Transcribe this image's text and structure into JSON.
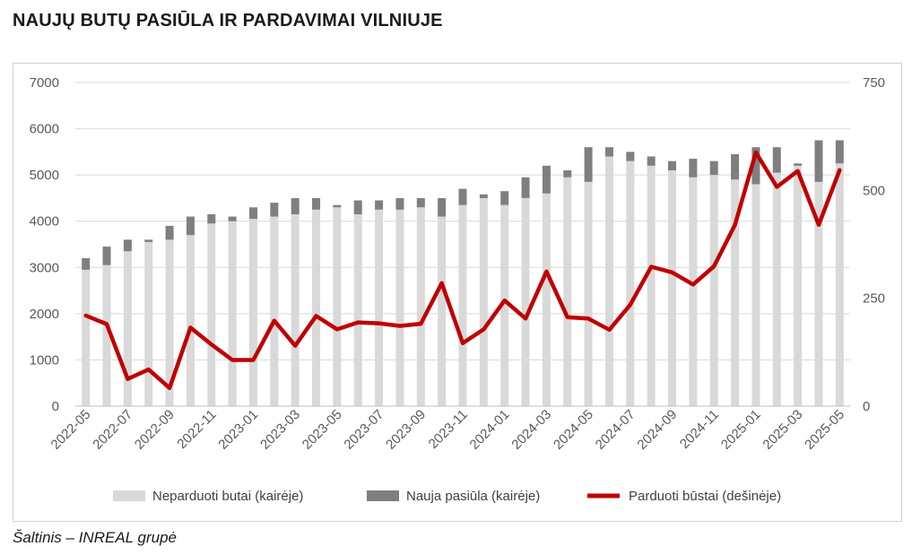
{
  "title": "NAUJŲ BUTŲ PASIŪLA IR PARDAVIMAI VILNIUJE",
  "source": "Šaltinis – INREAL grupė",
  "colors": {
    "unsold": "#d9d9d9",
    "new_supply": "#7f7f7f",
    "sold": "#c00000",
    "grid": "#d9d9d9",
    "text": "#595959"
  },
  "chart_data": {
    "type": "bar",
    "stacked": true,
    "secondary_axis": true,
    "x": [
      "2022-05",
      "2022-06",
      "2022-07",
      "2022-08",
      "2022-09",
      "2022-10",
      "2022-11",
      "2022-12",
      "2023-01",
      "2023-02",
      "2023-03",
      "2023-04",
      "2023-05",
      "2023-06",
      "2023-07",
      "2023-08",
      "2023-09",
      "2023-10",
      "2023-11",
      "2023-12",
      "2024-01",
      "2024-02",
      "2024-03",
      "2024-04",
      "2024-05",
      "2024-06",
      "2024-07",
      "2024-08",
      "2024-09",
      "2024-10",
      "2024-11",
      "2024-12",
      "2025-01",
      "2025-02",
      "2025-03",
      "2025-04",
      "2025-05"
    ],
    "x_tick_labels": [
      "2022-05",
      "2022-07",
      "2022-09",
      "2022-11",
      "2023-01",
      "2023-03",
      "2023-05",
      "2023-07",
      "2023-09",
      "2023-11",
      "2024-01",
      "2024-03",
      "2024-05",
      "2024-07",
      "2024-09",
      "2024-11",
      "2025-01",
      "2025-03",
      "2025-05"
    ],
    "series": [
      {
        "name": "Neparduoti butai (kairėje)",
        "type": "bar",
        "axis": "left",
        "values": [
          2950,
          3050,
          3350,
          3550,
          3600,
          3700,
          3950,
          4000,
          4050,
          4100,
          4150,
          4250,
          4300,
          4150,
          4250,
          4250,
          4300,
          4100,
          4350,
          4500,
          4350,
          4500,
          4600,
          4950,
          4850,
          5400,
          5300,
          5200,
          5100,
          4950,
          5000,
          4900,
          4800,
          5050,
          5200,
          4850,
          5250
        ]
      },
      {
        "name": "Nauja pasiūla (kairėje)",
        "type": "bar",
        "axis": "left",
        "values": [
          250,
          400,
          250,
          50,
          300,
          400,
          200,
          100,
          250,
          300,
          350,
          250,
          50,
          300,
          200,
          250,
          200,
          400,
          350,
          80,
          300,
          450,
          600,
          150,
          750,
          200,
          200,
          200,
          200,
          400,
          300,
          550,
          800,
          550,
          50,
          900,
          500
        ]
      },
      {
        "name": "Parduoti būstai (dešinėje)",
        "type": "line",
        "axis": "right",
        "values": [
          210,
          190,
          63,
          85,
          42,
          182,
          143,
          107,
          107,
          198,
          140,
          209,
          178,
          194,
          192,
          186,
          191,
          285,
          146,
          178,
          245,
          203,
          312,
          206,
          203,
          177,
          235,
          323,
          310,
          282,
          324,
          420,
          588,
          508,
          545,
          420,
          547
        ]
      }
    ],
    "y_left": {
      "ticks": [
        "0",
        "1000",
        "2000",
        "3000",
        "4000",
        "5000",
        "6000",
        "7000"
      ],
      "lim": [
        0,
        7000
      ]
    },
    "y_right": {
      "ticks": [
        "0",
        "250",
        "500",
        "750"
      ],
      "lim": [
        0,
        750
      ]
    },
    "grid": true,
    "legend_position": "bottom"
  }
}
